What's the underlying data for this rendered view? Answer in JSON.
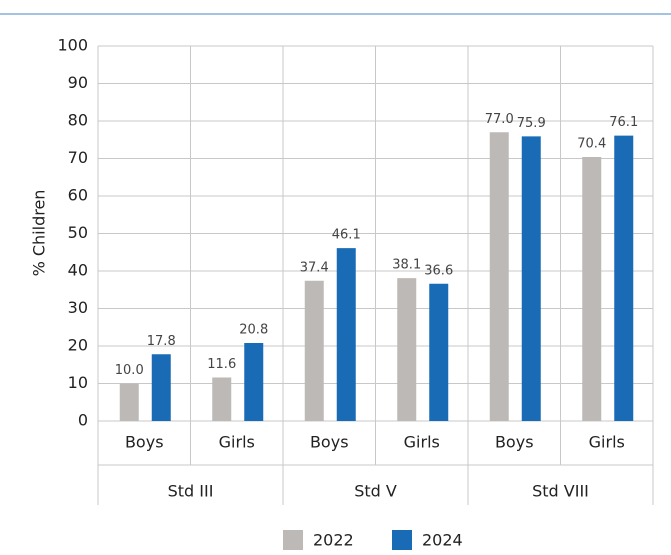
{
  "chart_data": {
    "type": "bar",
    "y_label": "% Children",
    "groups": [
      "Std III",
      "Std V",
      "Std VIII"
    ],
    "categories": [
      "Boys",
      "Girls",
      "Boys",
      "Girls",
      "Boys",
      "Girls"
    ],
    "series": [
      {
        "name": "2022",
        "color": "#bdb9b7",
        "values": [
          10.0,
          11.6,
          37.4,
          38.1,
          77.0,
          70.4
        ],
        "value_labels": [
          "10.0",
          "11.6",
          "37.4",
          "38.1",
          "77.0",
          "70.4"
        ]
      },
      {
        "name": "2024",
        "color": "#1a6bb5",
        "values": [
          17.8,
          20.8,
          46.1,
          36.6,
          75.9,
          76.1
        ],
        "value_labels": [
          "17.8",
          "20.8",
          "46.1",
          "36.6",
          "75.9",
          "76.1"
        ]
      }
    ],
    "ylim": [
      0,
      100
    ],
    "yticks": [
      0,
      10,
      20,
      30,
      40,
      50,
      60,
      70,
      80,
      90,
      100
    ],
    "grid": true,
    "legend": "bottom"
  }
}
